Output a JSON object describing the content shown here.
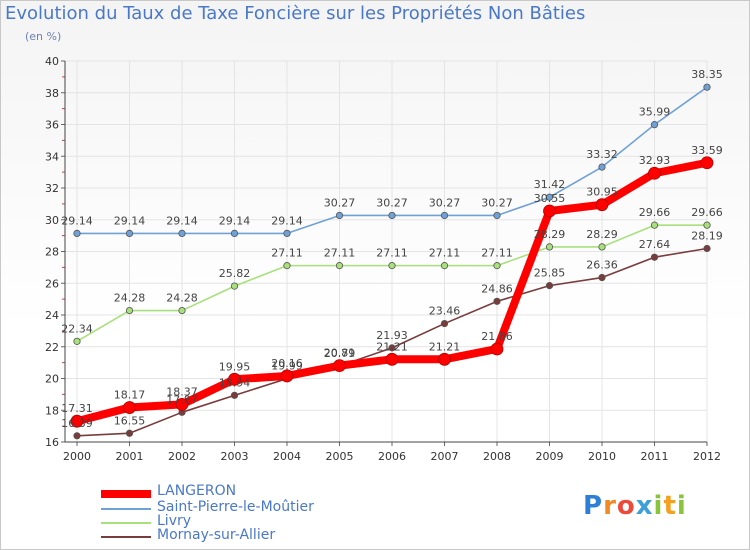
{
  "chart_data": {
    "type": "line",
    "title": "Evolution du Taux de Taxe Foncière sur les Propriétés Non Bâties",
    "subtitle": "(en %)",
    "x": [
      2000,
      2001,
      2002,
      2003,
      2004,
      2005,
      2006,
      2007,
      2008,
      2009,
      2010,
      2011,
      2012
    ],
    "ylim": [
      16,
      40
    ],
    "yticks": [
      16,
      18,
      20,
      22,
      24,
      26,
      28,
      30,
      32,
      34,
      36,
      38,
      40
    ],
    "grid": true,
    "series": [
      {
        "name": "LANGERON",
        "color": "#ff0000",
        "values": [
          17.31,
          18.17,
          18.37,
          19.95,
          20.16,
          20.81,
          21.21,
          21.21,
          21.86,
          30.55,
          30.95,
          32.93,
          33.59
        ],
        "labels": [
          "17.31",
          "18.17",
          "18.37",
          "19.95",
          "20.16",
          "20.81",
          "21.21",
          "21.21",
          "21.86",
          "30.55",
          "30.95",
          "32.93",
          "33.59"
        ]
      },
      {
        "name": "Saint-Pierre-le-Moûtier",
        "color": "#6fa1d6",
        "values": [
          29.14,
          29.14,
          29.14,
          29.14,
          29.14,
          30.27,
          30.27,
          30.27,
          30.27,
          31.42,
          33.32,
          35.99,
          38.35
        ],
        "labels": [
          "29.14",
          "29.14",
          "29.14",
          "29.14",
          "29.14",
          "30.27",
          "30.27",
          "30.27",
          "30.27",
          "31.42",
          "33.32",
          "35.99",
          "38.35"
        ]
      },
      {
        "name": "Livry",
        "color": "#a8e07c",
        "values": [
          22.34,
          24.28,
          24.28,
          25.82,
          27.11,
          27.11,
          27.11,
          27.11,
          27.11,
          28.29,
          28.29,
          29.66,
          29.66
        ],
        "labels": [
          "22.34",
          "24.28",
          "24.28",
          "25.82",
          "27.11",
          "27.11",
          "27.11",
          "27.11",
          "27.11",
          "28.29",
          "28.29",
          "29.66",
          "29.66"
        ]
      },
      {
        "name": "Mornay-sur-Allier",
        "color": "#7a3b3b",
        "values": [
          16.39,
          16.55,
          17.87,
          18.94,
          19.99,
          20.79,
          21.93,
          23.46,
          24.86,
          25.85,
          26.36,
          27.64,
          28.19
        ],
        "labels": [
          "16.39",
          "16.55",
          "17.87",
          "18.94",
          "19.99",
          "20.79",
          "21.93",
          "23.46",
          "24.86",
          "25.85",
          "26.36",
          "27.64",
          "28.19"
        ]
      }
    ],
    "legend": [
      "LANGERON",
      "Saint-Pierre-le-Moûtier",
      "Livry",
      "Mornay-sur-Allier"
    ],
    "legend_position": "bottom-left"
  },
  "logo": {
    "text": "Proxiti",
    "letters": [
      "P",
      "r",
      "o",
      "x",
      "i",
      "t",
      "i"
    ]
  }
}
